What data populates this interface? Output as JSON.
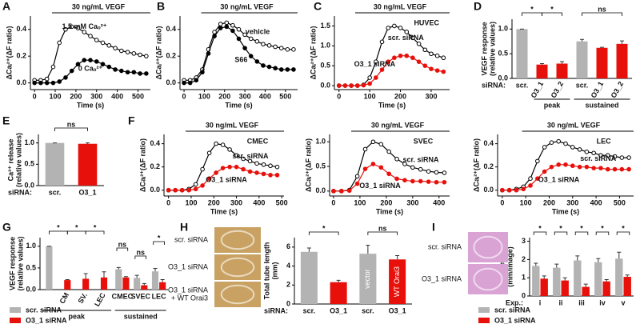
{
  "chart_data": [
    {
      "type": "line",
      "panel": "A",
      "title": "30 ng/mL VEGF",
      "x_label": "Time (s)",
      "y_label": [
        "ΔCaᵢ²⁺(ΔF ratio)"
      ],
      "x": [
        0,
        30,
        60,
        90,
        120,
        150,
        180,
        210,
        240,
        270,
        300,
        330,
        360,
        390,
        420,
        450,
        480,
        510,
        540
      ],
      "series": [
        {
          "name": "1.5 mM Caₒ²⁺",
          "color": "#000000",
          "marker": "open",
          "values": [
            0.02,
            0.02,
            0.03,
            0.12,
            0.3,
            0.4,
            0.42,
            0.41,
            0.38,
            0.35,
            0.32,
            0.3,
            0.28,
            0.26,
            0.24,
            0.23,
            0.22,
            0.21,
            0.2
          ]
        },
        {
          "name": "0 Caₒ²⁺",
          "color": "#000000",
          "marker": "filled",
          "values": [
            0,
            0,
            0,
            0,
            0.01,
            0.04,
            0.09,
            0.14,
            0.17,
            0.17,
            0.16,
            0.14,
            0.12,
            0.1,
            0.09,
            0.08,
            0.08,
            0.07,
            0.07
          ]
        }
      ],
      "xlim": [
        -20,
        560
      ],
      "xticks": [
        0,
        100,
        200,
        300,
        400,
        500
      ],
      "ylim": [
        -0.05,
        0.5
      ],
      "yticks": [
        {
          "value": 0,
          "label": "0.0"
        },
        0.2,
        0.4
      ]
    },
    {
      "type": "line",
      "panel": "B",
      "title": "30 ng/mL VEGF",
      "x_label": "Time (s)",
      "y_label": [
        "ΔCaᵢ²⁺(ΔF ratio)"
      ],
      "x": [
        0,
        30,
        60,
        90,
        120,
        150,
        180,
        210,
        240,
        270,
        300,
        330,
        360,
        390,
        420,
        450,
        480,
        510,
        540
      ],
      "series": [
        {
          "name": "vehicle",
          "color": "#000000",
          "marker": "open",
          "values": [
            0.02,
            0.02,
            0.04,
            0.1,
            0.25,
            0.38,
            0.44,
            0.45,
            0.43,
            0.4,
            0.36,
            0.33,
            0.31,
            0.29,
            0.28,
            0.27,
            0.26,
            0.25,
            0.25
          ]
        },
        {
          "name": "S66",
          "color": "#000000",
          "marker": "filled",
          "values": [
            0,
            0,
            0.02,
            0.08,
            0.22,
            0.35,
            0.41,
            0.42,
            0.39,
            0.33,
            0.26,
            0.2,
            0.16,
            0.13,
            0.12,
            0.11,
            0.1,
            0.1,
            0.1
          ]
        }
      ],
      "xlim": [
        -20,
        560
      ],
      "xticks": [
        0,
        100,
        200,
        300,
        400,
        500
      ],
      "ylim": [
        -0.05,
        0.5
      ],
      "yticks": [
        {
          "value": 0,
          "label": "0.0"
        },
        0.2,
        0.4
      ]
    },
    {
      "type": "line",
      "panel": "C",
      "title": "30 ng/mL VEGF",
      "cell": "HUVEC",
      "x_label": "Time (s)",
      "y_label": [
        "ΔCaᵢ²⁺(ΔF ratio)"
      ],
      "x": [
        0,
        20,
        40,
        60,
        80,
        100,
        120,
        140,
        160,
        180,
        200,
        220,
        240,
        260,
        280,
        300,
        320,
        340
      ],
      "series": [
        {
          "name": "scr. siRNA",
          "color": "#000000",
          "marker": "open",
          "values": [
            0,
            0,
            0,
            0,
            0.02,
            0.2,
            0.6,
            1.1,
            1.45,
            1.5,
            1.45,
            1.35,
            1.2,
            1.05,
            0.9,
            0.8,
            0.75,
            0.7
          ]
        },
        {
          "name": "O3_1 siRNA",
          "color": "#e8100b",
          "marker": "filled",
          "values": [
            0,
            0,
            0,
            0,
            0.01,
            0.05,
            0.2,
            0.4,
            0.6,
            0.7,
            0.75,
            0.75,
            0.7,
            0.6,
            0.5,
            0.42,
            0.38,
            0.35
          ]
        }
      ],
      "xlim": [
        -15,
        360
      ],
      "xticks": [
        0,
        100,
        200,
        300
      ],
      "ylim": [
        -0.1,
        1.75
      ],
      "yticks": [
        {
          "value": 0,
          "label": "0.0"
        },
        0.5,
        {
          "value": 1,
          "label": "1.0"
        },
        1.5
      ]
    },
    {
      "type": "bar",
      "panel": "D",
      "x_label": "siRNA:",
      "y_label": [
        "VEGF response",
        "(relative values)"
      ],
      "categories": [
        "scr.",
        "O3_1",
        "O3_2",
        "scr.",
        "O3_1",
        "O3_2"
      ],
      "values": [
        1.0,
        0.28,
        0.3,
        0.75,
        0.62,
        0.7
      ],
      "errors": [
        0,
        0.02,
        0.04,
        0.04,
        0.01,
        0.06
      ],
      "colors": [
        "#b3b3b3",
        "#e8100b",
        "#e8100b",
        "#b3b3b3",
        "#e8100b",
        "#e8100b"
      ],
      "group_labels": [
        "peak",
        "sustained"
      ],
      "annotations": [
        "*",
        "*",
        "ns"
      ],
      "ylim": [
        0,
        1.2
      ],
      "yticks": [
        {
          "value": 0,
          "label": "0.0"
        },
        0.5,
        {
          "value": 1,
          "label": "1.0"
        }
      ]
    },
    {
      "type": "bar",
      "panel": "E",
      "x_label": "siRNA:",
      "y_label": [
        "Ca²⁺ release",
        "(relative values)"
      ],
      "categories": [
        "scr.",
        "O3_1"
      ],
      "values": [
        1.0,
        0.98
      ],
      "errors": [
        0,
        0.02
      ],
      "colors": [
        "#b3b3b3",
        "#e8100b"
      ],
      "annotations": [
        "ns"
      ],
      "ylim": [
        0,
        1.2
      ],
      "yticks": [
        {
          "value": 0,
          "label": "0.0"
        },
        0.5,
        {
          "value": 1,
          "label": "1.0"
        }
      ]
    },
    {
      "type": "line",
      "panel": "F",
      "title": "30 ng/mL VEGF",
      "cell": "CMEC",
      "x_label": "Time (s)",
      "y_label": [
        "ΔCaᵢ²⁺(ΔF ratio)"
      ],
      "x": [
        0,
        30,
        60,
        90,
        120,
        150,
        180,
        210,
        240,
        270,
        300,
        330,
        360,
        390,
        420,
        450,
        480
      ],
      "series": [
        {
          "name": "scr. siRNA",
          "color": "#000000",
          "marker": "open",
          "values": [
            0,
            0,
            0,
            0.01,
            0.05,
            0.18,
            0.32,
            0.4,
            0.39,
            0.35,
            0.3,
            0.27,
            0.25,
            0.23,
            0.22,
            0.21,
            0.2
          ]
        },
        {
          "name": "O3_1 siRNA",
          "color": "#e8100b",
          "marker": "filled",
          "values": [
            0,
            0,
            0,
            0,
            0.01,
            0.04,
            0.1,
            0.15,
            0.19,
            0.2,
            0.2,
            0.18,
            0.16,
            0.15,
            0.14,
            0.13,
            0.13
          ]
        }
      ],
      "xlim": [
        -20,
        510
      ],
      "xticks": [
        0,
        100,
        200,
        300,
        400,
        500
      ],
      "ylim": [
        -0.05,
        0.48
      ],
      "yticks": [
        {
          "value": 0,
          "label": "0.0"
        },
        0.2,
        0.4
      ]
    },
    {
      "type": "line",
      "title": "30 ng/mL VEGF",
      "cell": "SVEC",
      "x_label": "Time (s)",
      "y_label": [
        "ΔCaᵢ²⁺(ΔF ratio)"
      ],
      "x": [
        0,
        30,
        60,
        90,
        120,
        150,
        180,
        210,
        240,
        270,
        300,
        330,
        360,
        390,
        420
      ],
      "series": [
        {
          "name": "scr. siRNA",
          "color": "#000000",
          "marker": "open",
          "values": [
            0,
            0,
            0.02,
            0.3,
            0.85,
            1.0,
            0.95,
            0.8,
            0.65,
            0.55,
            0.48,
            0.44,
            0.4,
            0.38,
            0.37
          ]
        },
        {
          "name": "O3_1 siRNA",
          "color": "#e8100b",
          "marker": "filled",
          "values": [
            0,
            0,
            0.01,
            0.15,
            0.45,
            0.55,
            0.48,
            0.35,
            0.25,
            0.22,
            0.2,
            0.2,
            0.19,
            0.18,
            0.18
          ]
        }
      ],
      "xlim": [
        -15,
        440
      ],
      "xticks": [
        0,
        100,
        200,
        300,
        400
      ],
      "ylim": [
        -0.1,
        1.15
      ],
      "yticks": [
        {
          "value": 0,
          "label": "0.0"
        },
        0.5,
        {
          "value": 1,
          "label": "1.0"
        }
      ]
    },
    {
      "type": "line",
      "title": "30 ng/mL VEGF",
      "cell": "LEC",
      "x_label": "Time (s)",
      "y_label": [
        "ΔCaᵢ²⁺(ΔF ratio)"
      ],
      "x": [
        0,
        30,
        60,
        90,
        120,
        150,
        180,
        210,
        240,
        270,
        300,
        330,
        360,
        390,
        420,
        450,
        480,
        510,
        540
      ],
      "series": [
        {
          "name": "scr. siRNA",
          "color": "#000000",
          "marker": "open",
          "values": [
            0,
            0,
            0.01,
            0.03,
            0.1,
            0.25,
            0.37,
            0.41,
            0.42,
            0.4,
            0.37,
            0.35,
            0.33,
            0.32,
            0.3,
            0.3,
            0.29,
            0.28,
            0.28
          ]
        },
        {
          "name": "O3_1 siRNA",
          "color": "#e8100b",
          "marker": "filled",
          "values": [
            0,
            0,
            0,
            0.01,
            0.04,
            0.1,
            0.16,
            0.2,
            0.22,
            0.22,
            0.21,
            0.2,
            0.2,
            0.19,
            0.19,
            0.18,
            0.18,
            0.18,
            0.18
          ]
        }
      ],
      "xlim": [
        -20,
        560
      ],
      "xticks": [
        0,
        100,
        200,
        300,
        400,
        500
      ],
      "ylim": [
        -0.05,
        0.48
      ],
      "yticks": [
        {
          "value": 0,
          "label": "0.0"
        },
        0.2,
        0.4
      ]
    },
    {
      "type": "bar",
      "panel": "G",
      "y_label": [
        "VEGF response",
        "(relative values)"
      ],
      "categories": [
        null,
        "CM",
        "SV.",
        "LEC",
        "CMEC",
        "SVEC",
        "LEC"
      ],
      "series": [
        {
          "name": "scr. siRNA",
          "color": "#b3b3b3",
          "values": [
            1.0,
            null,
            null,
            null,
            0.47,
            0.27,
            0.42
          ],
          "errors": [
            0,
            null,
            null,
            null,
            0.04,
            0.06,
            0.07
          ]
        },
        {
          "name": "O3_1 siRNA",
          "color": "#e8100b",
          "values": [
            null,
            0.22,
            0.25,
            0.28,
            0.28,
            0.1,
            0.17
          ],
          "errors": [
            null,
            0.01,
            0.12,
            0.13,
            0.02,
            0.04,
            0.06
          ]
        }
      ],
      "group_labels": [
        "peak",
        "sustained"
      ],
      "annotations": [
        "*",
        "*",
        "*",
        "ns",
        "ns",
        "*"
      ],
      "ylim": [
        0,
        1.2
      ],
      "yticks": [
        {
          "value": 0,
          "label": "0.0"
        },
        0.5,
        {
          "value": 1,
          "label": "1.0"
        }
      ]
    },
    {
      "type": "bar",
      "panel": "H",
      "x_label": "siRNA:",
      "y_label": [
        "Total tube length",
        "(mm)"
      ],
      "image_labels": [
        [
          "scr. siRNA"
        ],
        [
          "O3_1 siRNA"
        ],
        [
          "O3_1 siRNA",
          "+ WT Orai3"
        ]
      ],
      "categories": [
        "scr.",
        "O3_1",
        "scr.",
        "O3_1"
      ],
      "values": [
        5.5,
        2.3,
        5.3,
        4.7
      ],
      "errors": [
        0.4,
        0.2,
        0.9,
        0.4
      ],
      "colors": [
        "#b3b3b3",
        "#e8100b",
        "#b3b3b3",
        "#e8100b"
      ],
      "bar_labels": [
        null,
        null,
        "vector",
        "WT Orai3"
      ],
      "annotations": [
        "*",
        "ns"
      ],
      "ylim": [
        0,
        7
      ],
      "yticks": [
        0,
        2,
        4,
        6
      ]
    },
    {
      "type": "bar",
      "panel": "I",
      "x_label": "Exp.:",
      "y_label": [
        "Tube length",
        "(mm/image)"
      ],
      "image_labels": [
        [
          "scr. siRNA"
        ],
        [
          "O3_1 siRNA"
        ]
      ],
      "categories": [
        "i",
        "ii",
        "iii",
        "iv",
        "v"
      ],
      "series": [
        {
          "name": "scr. siRNA",
          "color": "#b3b3b3",
          "values": [
            1.65,
            1.55,
            1.95,
            1.85,
            2.05
          ],
          "errors": [
            0.15,
            0.2,
            0.25,
            0.2,
            0.35
          ]
        },
        {
          "name": "O3_1 siRNA",
          "color": "#e8100b",
          "values": [
            0.95,
            0.85,
            0.5,
            0.8,
            1.05
          ],
          "errors": [
            0.15,
            0.15,
            0.15,
            0.1,
            0.1
          ]
        }
      ],
      "annotations": [
        "*",
        "*",
        "*",
        "*",
        "*"
      ],
      "ylim": [
        0,
        3.2
      ],
      "yticks": [
        0,
        1,
        2,
        3
      ]
    }
  ]
}
